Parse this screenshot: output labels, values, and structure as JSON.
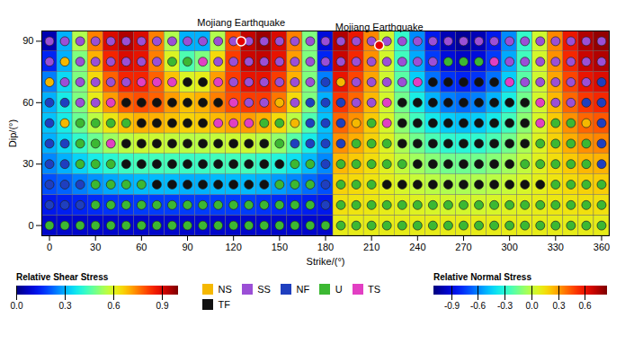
{
  "chart_data": {
    "type": "heatmap",
    "x_label": "Strike/(°)",
    "y_label": "Dip/(°)",
    "xlim": [
      -5,
      365
    ],
    "xticks": [
      0,
      30,
      60,
      90,
      120,
      150,
      180,
      210,
      240,
      270,
      300,
      330,
      360
    ],
    "ylim": [
      -5,
      95
    ],
    "yticks": [
      0,
      30,
      60,
      90
    ],
    "dips": [
      0,
      10,
      20,
      30,
      40,
      50,
      60,
      70,
      80,
      90
    ],
    "shear_stress": {
      "label": "Relative Shear Stress",
      "range": [
        0,
        1.0
      ],
      "ticks": [
        {
          "value": 0,
          "label": "0.0"
        },
        0.3,
        0.6,
        0.9
      ],
      "strikes": [
        0,
        10,
        20,
        30,
        40,
        50,
        60,
        70,
        80,
        90,
        100,
        110,
        120,
        130,
        140,
        150,
        160,
        170,
        180
      ],
      "values": [
        [
          0.08,
          0.08,
          0.08,
          0.08,
          0.08,
          0.08,
          0.08,
          0.08,
          0.08,
          0.08,
          0.08,
          0.08,
          0.08,
          0.08,
          0.08,
          0.08,
          0.08,
          0.08,
          0.08
        ],
        [
          0.13,
          0.14,
          0.15,
          0.16,
          0.17,
          0.17,
          0.18,
          0.18,
          0.18,
          0.18,
          0.18,
          0.18,
          0.18,
          0.18,
          0.17,
          0.16,
          0.15,
          0.14,
          0.13
        ],
        [
          0.2,
          0.22,
          0.25,
          0.27,
          0.29,
          0.3,
          0.31,
          0.31,
          0.31,
          0.3,
          0.3,
          0.31,
          0.31,
          0.31,
          0.3,
          0.28,
          0.26,
          0.23,
          0.2
        ],
        [
          0.26,
          0.3,
          0.34,
          0.38,
          0.41,
          0.43,
          0.44,
          0.44,
          0.44,
          0.43,
          0.43,
          0.44,
          0.44,
          0.44,
          0.42,
          0.4,
          0.36,
          0.31,
          0.26
        ],
        [
          0.3,
          0.35,
          0.42,
          0.48,
          0.53,
          0.56,
          0.58,
          0.58,
          0.57,
          0.56,
          0.56,
          0.57,
          0.58,
          0.58,
          0.56,
          0.52,
          0.46,
          0.38,
          0.3
        ],
        [
          0.32,
          0.38,
          0.48,
          0.56,
          0.63,
          0.68,
          0.7,
          0.7,
          0.68,
          0.66,
          0.67,
          0.69,
          0.71,
          0.72,
          0.7,
          0.65,
          0.56,
          0.45,
          0.32
        ],
        [
          0.3,
          0.38,
          0.5,
          0.62,
          0.72,
          0.78,
          0.8,
          0.78,
          0.72,
          0.68,
          0.7,
          0.75,
          0.8,
          0.82,
          0.82,
          0.76,
          0.65,
          0.5,
          0.3
        ],
        [
          0.25,
          0.35,
          0.5,
          0.65,
          0.78,
          0.85,
          0.85,
          0.78,
          0.68,
          0.6,
          0.62,
          0.72,
          0.82,
          0.88,
          0.88,
          0.82,
          0.7,
          0.5,
          0.25
        ],
        [
          0.15,
          0.3,
          0.5,
          0.7,
          0.85,
          0.9,
          0.88,
          0.75,
          0.6,
          0.45,
          0.5,
          0.65,
          0.82,
          0.92,
          0.93,
          0.88,
          0.72,
          0.5,
          0.15
        ],
        [
          0.05,
          0.3,
          0.55,
          0.75,
          0.9,
          0.95,
          0.9,
          0.75,
          0.55,
          0.3,
          0.3,
          0.55,
          0.8,
          0.93,
          0.97,
          0.9,
          0.75,
          0.5,
          0.1
        ]
      ]
    },
    "normal_stress": {
      "label": "Relative Normal Stress",
      "range": [
        -1.1,
        0.85
      ],
      "ticks": [
        -0.9,
        -0.6,
        -0.3,
        {
          "value": 0,
          "label": "0.0"
        },
        0.3,
        0.6
      ],
      "strikes": [
        190,
        200,
        210,
        220,
        230,
        240,
        250,
        260,
        270,
        280,
        290,
        300,
        310,
        320,
        330,
        340,
        350,
        360
      ],
      "values": [
        [
          0.11,
          0.11,
          0.11,
          0.11,
          0.11,
          0.11,
          0.11,
          0.11,
          0.11,
          0.11,
          0.11,
          0.11,
          0.11,
          0.11,
          0.11,
          0.11,
          0.11,
          0.11
        ],
        [
          0.15,
          0.14,
          0.13,
          0.11,
          0.09,
          0.08,
          0.06,
          0.05,
          0.05,
          0.05,
          0.06,
          0.08,
          0.09,
          0.11,
          0.13,
          0.14,
          0.15,
          0.15
        ],
        [
          0.19,
          0.17,
          0.14,
          0.1,
          0.06,
          0.02,
          -0.01,
          -0.03,
          -0.04,
          -0.03,
          -0.01,
          0.02,
          0.06,
          0.1,
          0.14,
          0.17,
          0.19,
          0.2
        ],
        [
          0.25,
          0.21,
          0.16,
          0.09,
          0.01,
          -0.06,
          -0.11,
          -0.15,
          -0.16,
          -0.15,
          -0.11,
          -0.06,
          0.01,
          0.09,
          0.16,
          0.21,
          0.25,
          0.26
        ],
        [
          0.33,
          0.27,
          0.19,
          0.08,
          -0.04,
          -0.15,
          -0.23,
          -0.29,
          -0.31,
          -0.29,
          -0.23,
          -0.15,
          -0.04,
          0.08,
          0.19,
          0.27,
          0.33,
          0.35
        ],
        [
          0.41,
          0.33,
          0.21,
          0.06,
          -0.1,
          -0.25,
          -0.37,
          -0.45,
          -0.48,
          -0.45,
          -0.37,
          -0.25,
          -0.1,
          0.06,
          0.21,
          0.33,
          0.41,
          0.44
        ],
        [
          0.51,
          0.41,
          0.25,
          0.05,
          -0.15,
          -0.35,
          -0.51,
          -0.61,
          -0.65,
          -0.61,
          -0.51,
          -0.35,
          -0.15,
          0.05,
          0.25,
          0.41,
          0.51,
          0.55
        ],
        [
          0.61,
          0.48,
          0.29,
          0.04,
          -0.2,
          -0.45,
          -0.64,
          -0.77,
          -0.81,
          -0.77,
          -0.64,
          -0.45,
          -0.2,
          0.04,
          0.29,
          0.48,
          0.61,
          0.65
        ],
        [
          0.7,
          0.55,
          0.33,
          0.05,
          -0.25,
          -0.53,
          -0.75,
          -0.9,
          -0.95,
          -0.9,
          -0.75,
          -0.53,
          -0.25,
          0.05,
          0.33,
          0.55,
          0.7,
          0.75
        ],
        [
          0.75,
          0.6,
          0.35,
          0.04,
          -0.28,
          -0.59,
          -0.84,
          -0.99,
          -1.05,
          -0.99,
          -0.84,
          -0.59,
          -0.28,
          0.04,
          0.35,
          0.6,
          0.75,
          0.81
        ]
      ]
    },
    "fault_type": {
      "legend": [
        {
          "name": "NS",
          "color": "#f5b800"
        },
        {
          "name": "SS",
          "color": "#9b4fd6"
        },
        {
          "name": "NF",
          "color": "#1f3fbf"
        },
        {
          "name": "U",
          "color": "#3cb832"
        },
        {
          "name": "TS",
          "color": "#e23fc3"
        },
        {
          "name": "TF",
          "color": "#111111"
        }
      ],
      "strikes": [
        0,
        10,
        20,
        30,
        40,
        50,
        60,
        70,
        80,
        90,
        100,
        110,
        120,
        130,
        140,
        150,
        160,
        170,
        180,
        190,
        200,
        210,
        220,
        230,
        240,
        250,
        260,
        270,
        280,
        290,
        300,
        310,
        320,
        330,
        340,
        350,
        360
      ],
      "values": [
        [
          "U",
          "U",
          "U",
          "U",
          "U",
          "U",
          "U",
          "U",
          "U",
          "U",
          "U",
          "U",
          "U",
          "U",
          "U",
          "U",
          "U",
          "U",
          "U",
          "U",
          "U",
          "U",
          "U",
          "U",
          "U",
          "U",
          "U",
          "U",
          "U",
          "U",
          "U",
          "U",
          "U",
          "U",
          "U",
          "U",
          "U"
        ],
        [
          "NF",
          "NF",
          "NF",
          "U",
          "U",
          "U",
          "U",
          "U",
          "U",
          "U",
          "U",
          "U",
          "U",
          "U",
          "U",
          "U",
          "U",
          "U",
          "NF",
          "U",
          "U",
          "U",
          "U",
          "U",
          "U",
          "U",
          "U",
          "U",
          "U",
          "U",
          "U",
          "U",
          "U",
          "U",
          "U",
          "U",
          "U"
        ],
        [
          "NF",
          "NF",
          "NF",
          "U",
          "U",
          "U",
          "U",
          "TF",
          "TF",
          "TF",
          "TF",
          "TF",
          "TF",
          "TF",
          "TF",
          "U",
          "U",
          "U",
          "NF",
          "U",
          "U",
          "U",
          "TF",
          "TF",
          "TF",
          "TF",
          "TF",
          "TF",
          "TF",
          "TF",
          "TF",
          "TF",
          "TF",
          "U",
          "U",
          "U",
          "U"
        ],
        [
          "NF",
          "NF",
          "U",
          "U",
          "U",
          "TF",
          "TF",
          "TF",
          "TF",
          "TF",
          "TF",
          "TF",
          "TF",
          "TF",
          "TF",
          "TF",
          "U",
          "U",
          "NF",
          "U",
          "U",
          "U",
          "U",
          "U",
          "TF",
          "TF",
          "TF",
          "TF",
          "TF",
          "TF",
          "TF",
          "U",
          "U",
          "U",
          "U",
          "U",
          "NF"
        ],
        [
          "NF",
          "NF",
          "U",
          "U",
          "TS",
          "TF",
          "TF",
          "TF",
          "TF",
          "TF",
          "TF",
          "TF",
          "TF",
          "TF",
          "TF",
          "U",
          "NF",
          "NF",
          "NF",
          "NF",
          "U",
          "U",
          "U",
          "TF",
          "TF",
          "TF",
          "TF",
          "TF",
          "TF",
          "TF",
          "TF",
          "TF",
          "U",
          "U",
          "U",
          "U",
          "NF"
        ],
        [
          "NF",
          "NS",
          "U",
          "U",
          "U",
          "U",
          "TF",
          "TF",
          "TF",
          "TF",
          "TF",
          "TS",
          "TS",
          "TS",
          "U",
          "U",
          "NS",
          "NF",
          "NF",
          "NF",
          "NS",
          "U",
          "TS",
          "TF",
          "TF",
          "TF",
          "TF",
          "TF",
          "TF",
          "TF",
          "TF",
          "TF",
          "TS",
          "U",
          "U",
          "NS",
          "NF"
        ],
        [
          "NF",
          "NF",
          "SS",
          "SS",
          "TS",
          "TF",
          "TF",
          "TF",
          "TF",
          "TF",
          "TF",
          "TF",
          "TS",
          "SS",
          "SS",
          "NS",
          "SS",
          "NF",
          "NF",
          "NF",
          "SS",
          "SS",
          "TS",
          "TF",
          "TF",
          "TF",
          "TF",
          "TF",
          "TF",
          "TF",
          "TF",
          "TF",
          "TS",
          "SS",
          "SS",
          "NF",
          "NF"
        ],
        [
          "NS",
          "SS",
          "SS",
          "SS",
          "SS",
          "SS",
          "TS",
          "TS",
          "TS",
          "TF",
          "TF",
          "TS",
          "SS",
          "SS",
          "SS",
          "SS",
          "SS",
          "SS",
          "NF",
          "NS",
          "SS",
          "SS",
          "SS",
          "SS",
          "TS",
          "TF",
          "TF",
          "TF",
          "TF",
          "TF",
          "TS",
          "SS",
          "SS",
          "SS",
          "SS",
          "SS",
          "NF"
        ],
        [
          "SS",
          "NS",
          "SS",
          "SS",
          "SS",
          "SS",
          "SS",
          "SS",
          "U",
          "U",
          "TS",
          "SS",
          "SS",
          "SS",
          "SS",
          "SS",
          "SS",
          "SS",
          "SS",
          "SS",
          "SS",
          "SS",
          "SS",
          "SS",
          "SS",
          "SS",
          "U",
          "U",
          "U",
          "TS",
          "SS",
          "SS",
          "SS",
          "SS",
          "SS",
          "SS",
          "SS"
        ],
        [
          "SS",
          "SS",
          "SS",
          "SS",
          "SS",
          "SS",
          "SS",
          "SS",
          "SS",
          "SS",
          "SS",
          "SS",
          "SS",
          "SS",
          "SS",
          "SS",
          "SS",
          "SS",
          "SS",
          "SS",
          "SS",
          "SS",
          "SS",
          "SS",
          "SS",
          "SS",
          "SS",
          "SS",
          "SS",
          "SS",
          "SS",
          "SS",
          "SS",
          "SS",
          "SS",
          "SS",
          "SS"
        ]
      ]
    },
    "annotations": [
      {
        "text": "Mojiang Earthquake",
        "strike": 125,
        "dip": 90
      },
      {
        "text": "Mojiang Earthquake",
        "strike": 215,
        "dip": 88
      }
    ]
  }
}
